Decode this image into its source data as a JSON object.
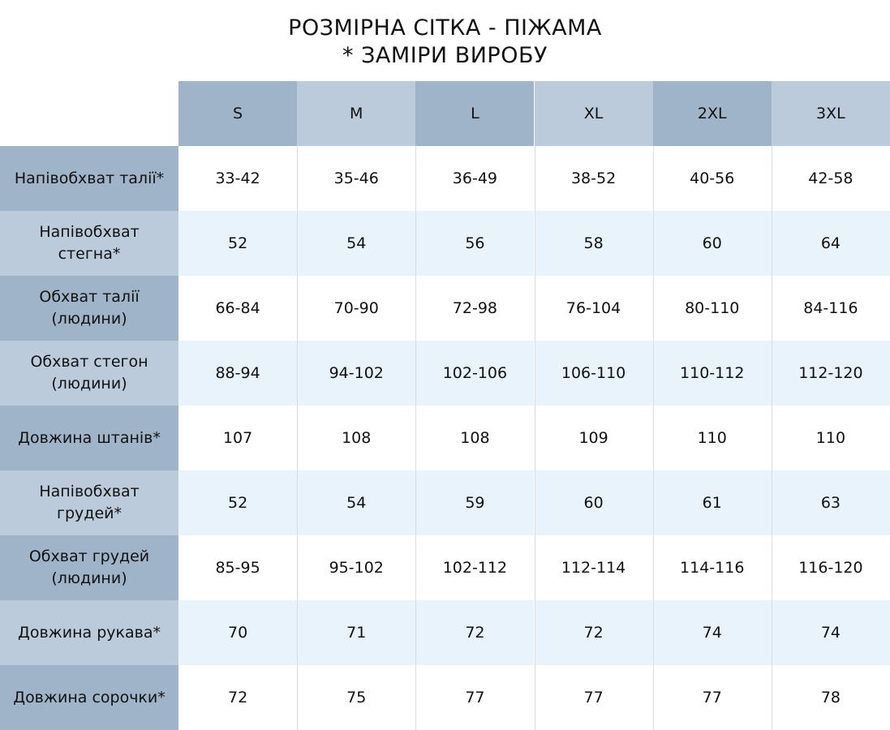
{
  "header": {
    "title": [
      "РОЗМІРНА СІТКА - ПІЖАМА",
      "* ЗАМІРИ ВИРОБУ"
    ]
  },
  "table": {
    "columns": [
      "S",
      "M",
      "L",
      "XL",
      "2XL",
      "3XL"
    ],
    "rows": [
      {
        "label": [
          "Напівобхват талії*"
        ],
        "values": [
          "33-42",
          "35-46",
          "36-49",
          "38-52",
          "40-56",
          "42-58"
        ]
      },
      {
        "label": [
          "Напівобхват",
          "стегна*"
        ],
        "values": [
          "52",
          "54",
          "56",
          "58",
          "60",
          "64"
        ]
      },
      {
        "label": [
          "Обхват талії",
          "(людини)"
        ],
        "values": [
          "66-84",
          "70-90",
          "72-98",
          "76-104",
          "80-110",
          "84-116"
        ]
      },
      {
        "label": [
          "Обхват стегон",
          "(людини)"
        ],
        "values": [
          "88-94",
          "94-102",
          "102-106",
          "106-110",
          "110-112",
          "112-120"
        ]
      },
      {
        "label": [
          "Довжина штанів*"
        ],
        "values": [
          "107",
          "108",
          "108",
          "109",
          "110",
          "110"
        ]
      },
      {
        "label": [
          "Напівобхват",
          "грудей*"
        ],
        "values": [
          "52",
          "54",
          "59",
          "60",
          "61",
          "63"
        ]
      },
      {
        "label": [
          "Обхват грудей",
          "(людини)"
        ],
        "values": [
          "85-95",
          "95-102",
          "102-112",
          "112-114",
          "114-116",
          "116-120"
        ]
      },
      {
        "label": [
          "Довжина рукава*"
        ],
        "values": [
          "70",
          "71",
          "72",
          "72",
          "74",
          "74"
        ]
      },
      {
        "label": [
          "Довжина сорочки*"
        ],
        "values": [
          "72",
          "75",
          "77",
          "77",
          "77",
          "78"
        ]
      }
    ]
  }
}
